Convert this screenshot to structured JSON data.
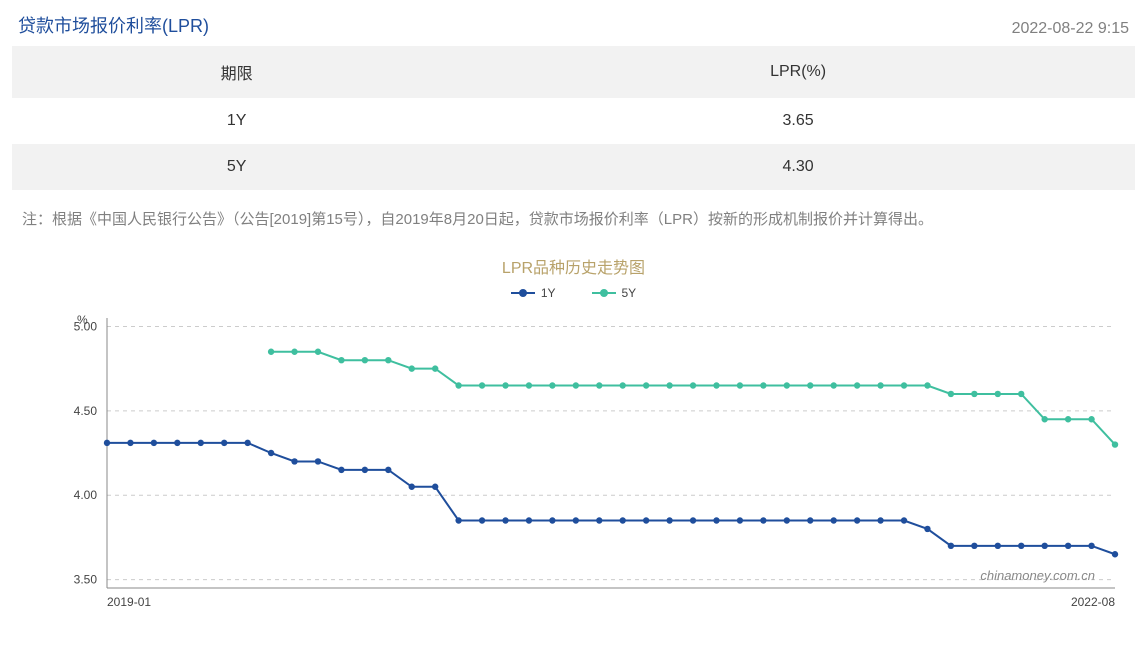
{
  "header": {
    "title": "贷款市场报价利率(LPR)",
    "timestamp": "2022-08-22 9:15"
  },
  "table": {
    "columns": [
      "期限",
      "LPR(%)"
    ],
    "rows": [
      [
        "1Y",
        "3.65"
      ],
      [
        "5Y",
        "4.30"
      ]
    ],
    "header_bg": "#f2f2f2",
    "row_alt_bg": "#f2f2f2"
  },
  "note": "注：根据《中国人民银行公告》（公告[2019]第15号），自2019年8月20日起，贷款市场报价利率（LPR）按新的形成机制报价并计算得出。",
  "chart": {
    "title": "LPR品种历史走势图",
    "type": "line",
    "x_axis": {
      "labels": [
        "2019-01",
        "2022-08"
      ],
      "count": 44
    },
    "y_axis": {
      "unit": "%",
      "ticks": [
        3.5,
        4.0,
        4.5,
        5.0
      ],
      "min": 3.45,
      "max": 5.05
    },
    "grid_color": "#cccccc",
    "axis_color": "#888888",
    "background_color": "#ffffff",
    "marker_radius": 3.2,
    "line_width": 2,
    "watermark": "chinamoney.com.cn",
    "legend": [
      {
        "label": "1Y",
        "color": "#1f4e9c"
      },
      {
        "label": "5Y",
        "color": "#3fbf9f"
      }
    ],
    "series": [
      {
        "name": "1Y",
        "color": "#1f4e9c",
        "values": [
          4.31,
          4.31,
          4.31,
          4.31,
          4.31,
          4.31,
          4.31,
          4.25,
          4.2,
          4.2,
          4.15,
          4.15,
          4.15,
          4.05,
          4.05,
          3.85,
          3.85,
          3.85,
          3.85,
          3.85,
          3.85,
          3.85,
          3.85,
          3.85,
          3.85,
          3.85,
          3.85,
          3.85,
          3.85,
          3.85,
          3.85,
          3.85,
          3.85,
          3.85,
          3.85,
          3.8,
          3.7,
          3.7,
          3.7,
          3.7,
          3.7,
          3.7,
          3.7,
          3.65
        ]
      },
      {
        "name": "5Y",
        "color": "#3fbf9f",
        "values": [
          null,
          null,
          null,
          null,
          null,
          null,
          null,
          4.85,
          4.85,
          4.85,
          4.8,
          4.8,
          4.8,
          4.75,
          4.75,
          4.65,
          4.65,
          4.65,
          4.65,
          4.65,
          4.65,
          4.65,
          4.65,
          4.65,
          4.65,
          4.65,
          4.65,
          4.65,
          4.65,
          4.65,
          4.65,
          4.65,
          4.65,
          4.65,
          4.65,
          4.65,
          4.6,
          4.6,
          4.6,
          4.6,
          4.45,
          4.45,
          4.45,
          4.3
        ]
      }
    ]
  }
}
